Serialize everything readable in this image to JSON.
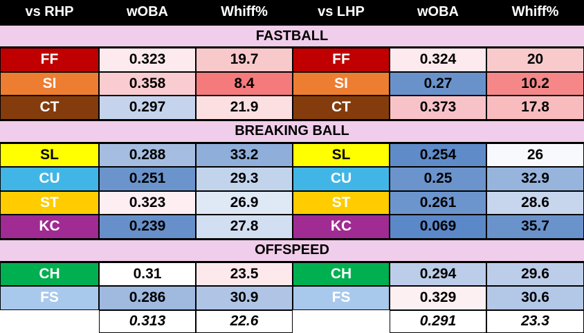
{
  "headers": [
    "vs RHP",
    "wOBA",
    "Whiff%",
    "vs LHP",
    "wOBA",
    "Whiff%"
  ],
  "sections": [
    {
      "label": "FASTBALL",
      "rows": [
        {
          "pitch": "FF",
          "pitch_color": "#c00000",
          "text_color": "#ffffff",
          "rhp_woba": "0.323",
          "rhp_woba_color": "#fdeaee",
          "rhp_whiff": "19.7",
          "rhp_whiff_color": "#f8c9cb",
          "lhp_woba": "0.324",
          "lhp_woba_color": "#fdeaee",
          "lhp_whiff": "20",
          "lhp_whiff_color": "#f8cacc"
        },
        {
          "pitch": "SI",
          "pitch_color": "#ed7d31",
          "text_color": "#ffffff",
          "rhp_woba": "0.358",
          "rhp_woba_color": "#f9ccd1",
          "rhp_whiff": "8.4",
          "rhp_whiff_color": "#f47a7c",
          "lhp_woba": "0.27",
          "lhp_woba_color": "#6992cb",
          "lhp_whiff": "10.2",
          "lhp_whiff_color": "#f58788"
        },
        {
          "pitch": "CT",
          "pitch_color": "#843c0c",
          "text_color": "#ffffff",
          "rhp_woba": "0.297",
          "rhp_woba_color": "#c5d4ec",
          "rhp_whiff": "21.9",
          "rhp_whiff_color": "#fbdfe1",
          "lhp_woba": "0.373",
          "lhp_woba_color": "#f8c3c8",
          "lhp_whiff": "17.8",
          "lhp_whiff_color": "#f8bcbf"
        }
      ]
    },
    {
      "label": "BREAKING BALL",
      "rows": [
        {
          "pitch": "SL",
          "pitch_color": "#ffff00",
          "text_color": "#000000",
          "rhp_woba": "0.288",
          "rhp_woba_color": "#a5bde0",
          "rhp_whiff": "33.2",
          "rhp_whiff_color": "#8faed9",
          "lhp_woba": "0.254",
          "lhp_woba_color": "#5f8bc9",
          "lhp_whiff": "26",
          "lhp_whiff_color": "#f7f9fd"
        },
        {
          "pitch": "CU",
          "pitch_color": "#41b6e6",
          "text_color": "#ffffff",
          "rhp_woba": "0.251",
          "rhp_woba_color": "#6b94cd",
          "rhp_whiff": "29.3",
          "rhp_whiff_color": "#c2d3ec",
          "lhp_woba": "0.25",
          "lhp_woba_color": "#6b94cd",
          "lhp_whiff": "32.9",
          "lhp_whiff_color": "#96b4dc"
        },
        {
          "pitch": "ST",
          "pitch_color": "#ffcc00",
          "text_color": "#ffffff",
          "rhp_woba": "0.323",
          "rhp_woba_color": "#fdeef2",
          "rhp_whiff": "26.9",
          "rhp_whiff_color": "#dfe8f5",
          "lhp_woba": "0.261",
          "lhp_woba_color": "#6d95cd",
          "lhp_whiff": "28.6",
          "lhp_whiff_color": "#c7d6ed"
        },
        {
          "pitch": "KC",
          "pitch_color": "#a02b93",
          "text_color": "#ffffff",
          "rhp_woba": "0.239",
          "rhp_woba_color": "#6790ca",
          "rhp_whiff": "27.8",
          "rhp_whiff_color": "#d2def1",
          "lhp_woba": "0.069",
          "lhp_woba_color": "#5b88c8",
          "lhp_whiff": "35.7",
          "lhp_whiff_color": "#6a93cc"
        }
      ]
    },
    {
      "label": "OFFSPEED",
      "rows": [
        {
          "pitch": "CH",
          "pitch_color": "#00b050",
          "text_color": "#ffffff",
          "rhp_woba": "0.31",
          "rhp_woba_color": "#ffffff",
          "rhp_whiff": "23.5",
          "rhp_whiff_color": "#fde9ec",
          "lhp_woba": "0.294",
          "lhp_woba_color": "#bccde9",
          "lhp_whiff": "29.6",
          "lhp_whiff_color": "#bccde9"
        },
        {
          "pitch": "FS",
          "pitch_color": "#a9c9ec",
          "text_color": "#ffffff",
          "rhp_woba": "0.286",
          "rhp_woba_color": "#9fb9df",
          "rhp_whiff": "30.9",
          "rhp_whiff_color": "#b0c5e5",
          "lhp_woba": "0.329",
          "lhp_woba_color": "#fdf0f3",
          "lhp_whiff": "30.6",
          "lhp_whiff_color": "#b3c7e6"
        }
      ]
    }
  ],
  "totals": {
    "rhp_woba": "0.313",
    "rhp_whiff": "22.6",
    "lhp_woba": "0.291",
    "lhp_whiff": "23.3"
  },
  "chart_data": {
    "type": "table",
    "columns": [
      "vs RHP",
      "wOBA",
      "Whiff%",
      "vs LHP",
      "wOBA",
      "Whiff%"
    ],
    "groups": [
      "FASTBALL",
      "BREAKING BALL",
      "OFFSPEED"
    ],
    "rows": [
      [
        "FF",
        0.323,
        19.7,
        "FF",
        0.324,
        20
      ],
      [
        "SI",
        0.358,
        8.4,
        "SI",
        0.27,
        10.2
      ],
      [
        "CT",
        0.297,
        21.9,
        "CT",
        0.373,
        17.8
      ],
      [
        "SL",
        0.288,
        33.2,
        "SL",
        0.254,
        26
      ],
      [
        "CU",
        0.251,
        29.3,
        "CU",
        0.25,
        32.9
      ],
      [
        "ST",
        0.323,
        26.9,
        "ST",
        0.261,
        28.6
      ],
      [
        "KC",
        0.239,
        27.8,
        "KC",
        0.069,
        35.7
      ],
      [
        "CH",
        0.31,
        23.5,
        "CH",
        0.294,
        29.6
      ],
      [
        "FS",
        0.286,
        30.9,
        "FS",
        0.329,
        30.6
      ]
    ],
    "totals": [
      null,
      0.313,
      22.6,
      null,
      0.291,
      23.3
    ]
  }
}
